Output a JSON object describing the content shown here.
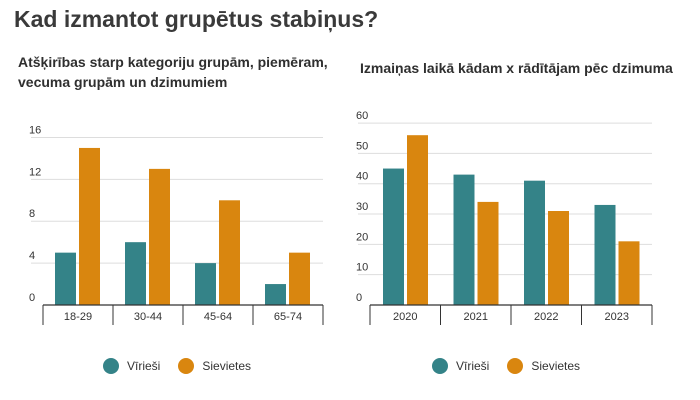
{
  "title": "Kad izmantot grupētus stabiņus?",
  "colors": {
    "male": "#348388",
    "female": "#d9860f",
    "grid": "#dddddd",
    "axis": "#333333"
  },
  "legend": {
    "male": "Vīrieši",
    "female": "Sievietes"
  },
  "chart_data": [
    {
      "type": "bar",
      "title": "Atšķirības starp kategoriju grupām, piemēram, vecuma grupām un dzimumiem",
      "categories": [
        "18-29",
        "30-44",
        "45-64",
        "65-74"
      ],
      "series": [
        {
          "name": "Vīrieši",
          "values": [
            5,
            6,
            4,
            2
          ]
        },
        {
          "name": "Sievietes",
          "values": [
            15,
            13,
            10,
            5
          ]
        }
      ],
      "yticks": [
        0,
        4,
        8,
        12,
        16
      ],
      "ylim": [
        0,
        17
      ],
      "grid": true,
      "legend_position": "bottom"
    },
    {
      "type": "bar",
      "title": "Izmaiņas laikā kādam x rādītājam pēc dzimuma",
      "categories": [
        "2020",
        "2021",
        "2022",
        "2023"
      ],
      "series": [
        {
          "name": "Vīrieši",
          "values": [
            45,
            43,
            41,
            33
          ]
        },
        {
          "name": "Sievietes",
          "values": [
            56,
            34,
            31,
            21
          ]
        }
      ],
      "yticks": [
        0,
        10,
        20,
        30,
        40,
        50,
        60
      ],
      "ylim": [
        0,
        62
      ],
      "grid": true,
      "legend_position": "bottom"
    }
  ]
}
